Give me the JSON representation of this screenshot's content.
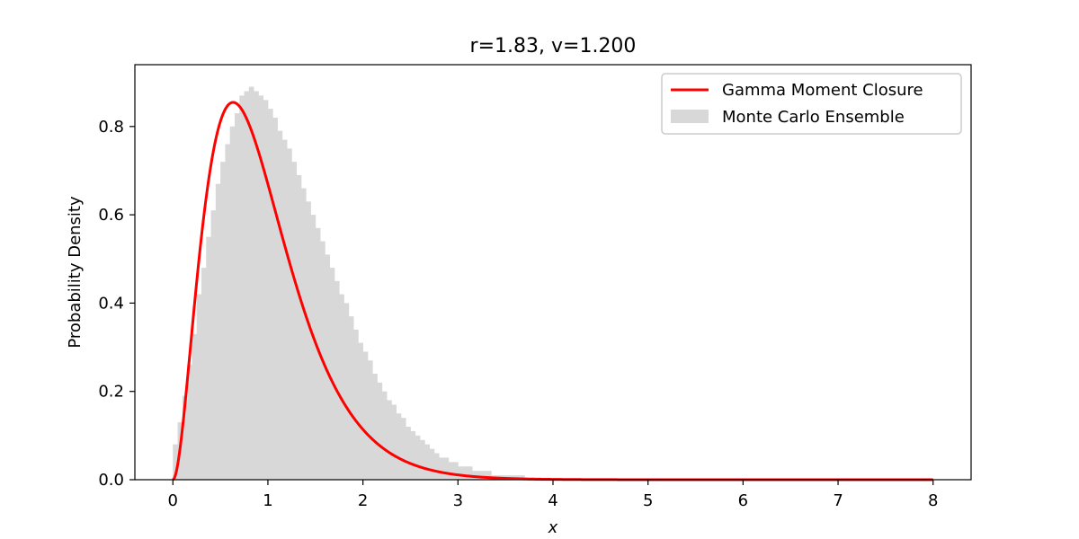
{
  "chart_data": {
    "type": "histogram+line",
    "title": "r=1.83, v=1.200",
    "xlabel": "x",
    "ylabel": "Probability Density",
    "xlim": [
      -0.4,
      8.4
    ],
    "ylim": [
      0.0,
      0.94
    ],
    "xticks": [
      0,
      1,
      2,
      3,
      4,
      5,
      6,
      7,
      8
    ],
    "xtick_labels": [
      "0",
      "1",
      "2",
      "3",
      "4",
      "5",
      "6",
      "7",
      "8"
    ],
    "yticks": [
      0.0,
      0.2,
      0.4,
      0.6,
      0.8
    ],
    "ytick_labels": [
      "0.0",
      "0.2",
      "0.4",
      "0.6",
      "0.8"
    ],
    "grid": false,
    "legend_position": "top-right",
    "series": [
      {
        "name": "Gamma Moment Closure",
        "kind": "line",
        "color": "#ff0000",
        "model": {
          "distribution": "gamma",
          "shape": 3.0,
          "scale": 0.3167
        },
        "x_range": [
          0.0,
          8.0
        ]
      },
      {
        "name": "Monte Carlo Ensemble",
        "kind": "histogram",
        "color": "#d8d8d8",
        "bin_width": 0.05,
        "bin_start": 0.0,
        "values": [
          0.08,
          0.13,
          0.19,
          0.26,
          0.33,
          0.42,
          0.48,
          0.55,
          0.61,
          0.67,
          0.72,
          0.76,
          0.8,
          0.83,
          0.87,
          0.88,
          0.89,
          0.88,
          0.87,
          0.86,
          0.84,
          0.82,
          0.79,
          0.77,
          0.75,
          0.72,
          0.69,
          0.66,
          0.63,
          0.6,
          0.57,
          0.54,
          0.51,
          0.48,
          0.45,
          0.42,
          0.4,
          0.37,
          0.34,
          0.31,
          0.29,
          0.27,
          0.24,
          0.22,
          0.2,
          0.18,
          0.17,
          0.15,
          0.14,
          0.12,
          0.11,
          0.1,
          0.09,
          0.08,
          0.07,
          0.06,
          0.05,
          0.05,
          0.04,
          0.04,
          0.03,
          0.03,
          0.03,
          0.02,
          0.02,
          0.02,
          0.02,
          0.01,
          0.01,
          0.01,
          0.01,
          0.01,
          0.01,
          0.01,
          0.0,
          0.0,
          0.0,
          0.0,
          0.0,
          0.0
        ]
      }
    ]
  }
}
